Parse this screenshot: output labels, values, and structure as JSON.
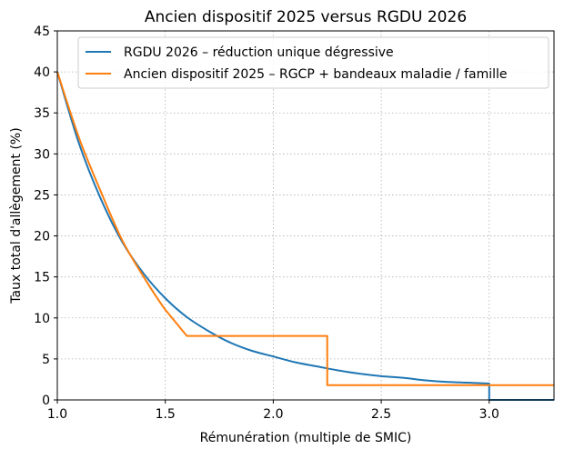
{
  "chart_data": {
    "type": "line",
    "title": "Ancien dispositif 2025 versus RGDU 2026",
    "xlabel": "Rémunération (multiple de SMIC)",
    "ylabel": "Taux total d'allègement (%)",
    "xlim": [
      1.0,
      3.3
    ],
    "ylim": [
      0,
      45
    ],
    "xticks": [
      "1.0",
      "1.5",
      "2.0",
      "2.5",
      "3.0"
    ],
    "yticks": [
      "0",
      "5",
      "10",
      "15",
      "20",
      "25",
      "30",
      "35",
      "40",
      "45"
    ],
    "grid": true,
    "legend_position": "top-right",
    "series": [
      {
        "name": "RGDU 2026 – réduction unique dégressive",
        "color": "#1f77b4",
        "x": [
          1.0,
          1.1,
          1.2,
          1.3,
          1.4,
          1.5,
          1.6,
          1.7,
          1.8,
          1.9,
          2.0,
          2.1,
          2.2,
          2.3,
          2.4,
          2.5,
          2.6,
          2.7,
          2.8,
          2.9,
          3.0,
          3.0,
          3.3
        ],
        "y": [
          40.0,
          31.3,
          24.6,
          19.3,
          15.4,
          12.4,
          10.1,
          8.4,
          7.0,
          6.0,
          5.3,
          4.6,
          4.1,
          3.6,
          3.2,
          2.9,
          2.7,
          2.4,
          2.2,
          2.1,
          2.0,
          0.0,
          0.0
        ]
      },
      {
        "name": "Ancien dispositif 2025 – RGCP + bandeaux maladie / famille",
        "color": "#ff7f0e",
        "x": [
          1.0,
          1.1,
          1.2,
          1.3,
          1.4,
          1.5,
          1.6,
          2.25,
          2.25,
          3.3
        ],
        "y": [
          40.0,
          32.0,
          25.5,
          19.5,
          15.0,
          11.0,
          7.8,
          7.8,
          1.8,
          1.8
        ]
      }
    ]
  }
}
